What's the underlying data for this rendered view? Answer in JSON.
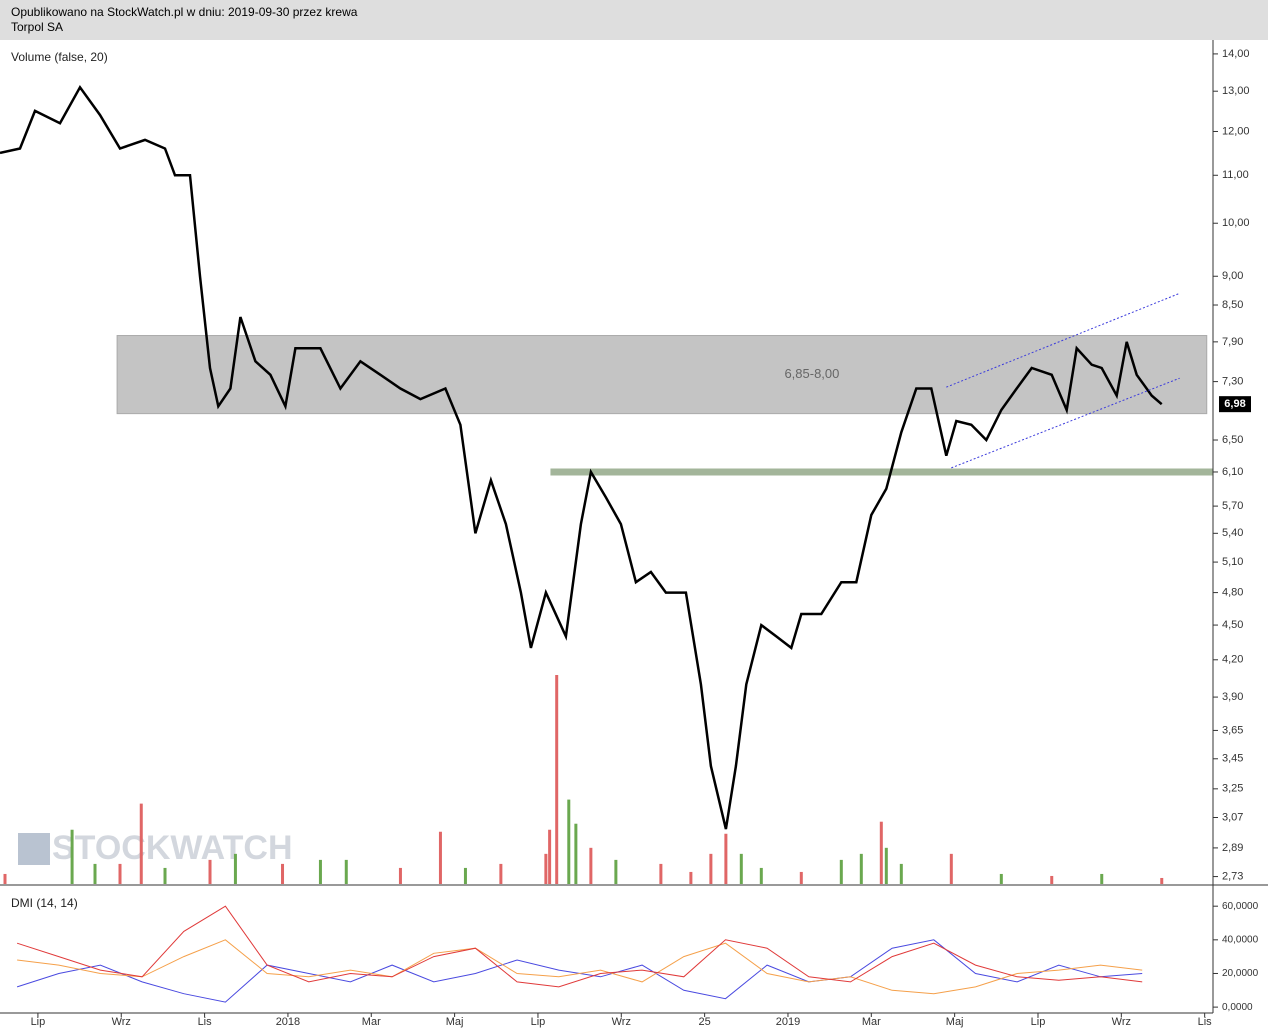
{
  "header": {
    "line1": "Opublikowano na StockWatch.pl w dniu: 2019-09-30 przez krewa",
    "line2": "Torpol SA"
  },
  "chart_data": [
    {
      "type": "line",
      "label": "Volume (false, 20)",
      "color": "#000000",
      "log_scale": true,
      "xlim": [
        -0.91,
        28.2
      ],
      "ylim": [
        2.69,
        14.25
      ],
      "xticks": [
        {
          "value": 0,
          "label": "Lip"
        },
        {
          "value": 2,
          "label": "Wrz"
        },
        {
          "value": 4,
          "label": "Lis"
        },
        {
          "value": 6,
          "label": "2018"
        },
        {
          "value": 8,
          "label": "Mar"
        },
        {
          "value": 10,
          "label": "Maj"
        },
        {
          "value": 12,
          "label": "Lip"
        },
        {
          "value": 14,
          "label": "Wrz"
        },
        {
          "value": 16,
          "label": "25"
        },
        {
          "value": 18,
          "label": "2019"
        },
        {
          "value": 20,
          "label": "Mar"
        },
        {
          "value": 22,
          "label": "Maj"
        },
        {
          "value": 24,
          "label": "Lip"
        },
        {
          "value": 26,
          "label": "Wrz"
        },
        {
          "value": 28,
          "label": "Lis"
        }
      ],
      "yticks": [
        {
          "value": 14,
          "label": "14,00"
        },
        {
          "value": 13,
          "label": "13,00"
        },
        {
          "value": 12,
          "label": "12,00"
        },
        {
          "value": 11,
          "label": "11,00"
        },
        {
          "value": 10,
          "label": "10,00"
        },
        {
          "value": 9,
          "label": "9,00"
        },
        {
          "value": 8.5,
          "label": "8,50"
        },
        {
          "value": 7.9,
          "label": "7,90"
        },
        {
          "value": 7.3,
          "label": "7,30"
        },
        {
          "value": 6.5,
          "label": "6,50"
        },
        {
          "value": 6.1,
          "label": "6,10"
        },
        {
          "value": 5.7,
          "label": "5,70"
        },
        {
          "value": 5.4,
          "label": "5,40"
        },
        {
          "value": 5.1,
          "label": "5,10"
        },
        {
          "value": 4.8,
          "label": "4,80"
        },
        {
          "value": 4.5,
          "label": "4,50"
        },
        {
          "value": 4.2,
          "label": "4,20"
        },
        {
          "value": 3.9,
          "label": "3,90"
        },
        {
          "value": 3.65,
          "label": "3,65"
        },
        {
          "value": 3.45,
          "label": "3,45"
        },
        {
          "value": 3.25,
          "label": "3,25"
        },
        {
          "value": 3.07,
          "label": "3,07"
        },
        {
          "value": 2.89,
          "label": "2,89"
        },
        {
          "value": 2.73,
          "label": "2,73"
        }
      ],
      "x": [
        -0.91,
        -0.43,
        -0.07,
        0.53,
        1.01,
        1.49,
        1.97,
        2.57,
        3.05,
        3.29,
        3.65,
        3.89,
        4.13,
        4.33,
        4.62,
        4.86,
        5.22,
        5.58,
        5.94,
        6.18,
        6.78,
        7.26,
        7.74,
        8.22,
        8.7,
        9.18,
        9.78,
        10.14,
        10.5,
        10.87,
        11.23,
        11.59,
        11.83,
        12.19,
        12.67,
        13.03,
        13.27,
        13.63,
        13.99,
        14.35,
        14.71,
        15.07,
        15.55,
        15.91,
        16.15,
        16.51,
        16.75,
        17.0,
        17.36,
        17.72,
        18.08,
        18.32,
        18.8,
        19.28,
        19.64,
        20.0,
        20.36,
        20.72,
        21.08,
        21.44,
        21.8,
        22.04,
        22.4,
        22.76,
        23.12,
        23.49,
        23.85,
        24.33,
        24.69,
        24.93,
        25.29,
        25.53,
        25.89,
        26.13,
        26.37,
        26.73,
        26.97
      ],
      "values": [
        11.5,
        11.6,
        12.5,
        12.2,
        13.1,
        12.4,
        11.6,
        11.8,
        11.6,
        11.0,
        11.0,
        9.0,
        7.5,
        6.95,
        7.2,
        8.3,
        7.6,
        7.4,
        6.95,
        7.8,
        7.8,
        7.2,
        7.6,
        7.4,
        7.2,
        7.05,
        7.2,
        6.7,
        5.4,
        6.0,
        5.5,
        4.8,
        4.3,
        4.8,
        4.4,
        5.5,
        6.1,
        5.8,
        5.5,
        4.9,
        5.0,
        4.8,
        4.8,
        4.0,
        3.4,
        3.0,
        3.4,
        4.0,
        4.5,
        4.4,
        4.3,
        4.6,
        4.6,
        4.9,
        4.9,
        5.6,
        5.9,
        6.6,
        7.2,
        7.2,
        6.3,
        6.75,
        6.7,
        6.5,
        6.9,
        7.2,
        7.5,
        7.4,
        6.9,
        7.8,
        7.55,
        7.5,
        7.1,
        7.9,
        7.4,
        7.1,
        6.98
      ],
      "zone": {
        "from": 6.85,
        "to": 8.0,
        "x": [
          1.9,
          28.05
        ],
        "label": "6,85-8,00",
        "color": "#c4c4c4"
      },
      "support": {
        "value": 6.1,
        "x": [
          12.3,
          28.2
        ],
        "color": "#a3b59a"
      },
      "channel": [
        {
          "x": [
            21.8,
            27.4
          ],
          "values": [
            7.22,
            8.7
          ]
        },
        {
          "x": [
            21.92,
            27.4
          ],
          "values": [
            6.15,
            7.35
          ]
        }
      ],
      "channel_color": "#3b3bdc",
      "last": {
        "value": 6.98,
        "label": "6,98"
      },
      "watermark": "STOCKWATCH"
    },
    {
      "type": "bar",
      "x": [
        -0.79,
        0.82,
        1.37,
        1.97,
        2.48,
        3.05,
        4.13,
        4.74,
        5.87,
        6.78,
        7.4,
        8.7,
        9.66,
        10.26,
        11.11,
        12.19,
        12.28,
        12.45,
        12.74,
        12.91,
        13.27,
        13.87,
        14.95,
        15.67,
        16.15,
        16.51,
        16.88,
        17.36,
        18.32,
        19.28,
        19.76,
        20.24,
        20.36,
        20.72,
        21.92,
        23.12,
        24.33,
        25.53,
        26.97
      ],
      "values": [
        5,
        27,
        10,
        10,
        40,
        8,
        12,
        15,
        10,
        12,
        12,
        8,
        26,
        8,
        10,
        15,
        27,
        104,
        42,
        30,
        18,
        12,
        10,
        6,
        15,
        25,
        15,
        8,
        6,
        12,
        15,
        31,
        18,
        10,
        15,
        5,
        4,
        5,
        3
      ],
      "colors": [
        "#e06666",
        "#6aa84f",
        "#6aa84f",
        "#e06666",
        "#e06666",
        "#6aa84f",
        "#e06666",
        "#6aa84f",
        "#e06666",
        "#6aa84f",
        "#6aa84f",
        "#e06666",
        "#e06666",
        "#6aa84f",
        "#e06666",
        "#e06666",
        "#e06666",
        "#e06666",
        "#6aa84f",
        "#6aa84f",
        "#e06666",
        "#6aa84f",
        "#e06666",
        "#e06666",
        "#e06666",
        "#e06666",
        "#6aa84f",
        "#6aa84f",
        "#e06666",
        "#6aa84f",
        "#6aa84f",
        "#e06666",
        "#6aa84f",
        "#6aa84f",
        "#e06666",
        "#6aa84f",
        "#e06666",
        "#6aa84f",
        "#e06666"
      ]
    },
    {
      "type": "line",
      "label": "DMI (14, 14)",
      "ylim": [
        -3.5,
        72
      ],
      "yticks": [
        {
          "value": 60,
          "label": "60,0000"
        },
        {
          "value": 40,
          "label": "40,0000"
        },
        {
          "value": 20,
          "label": "20,0000"
        },
        {
          "value": 0,
          "label": "0,0000"
        }
      ],
      "x": [
        -0.5,
        0.5,
        1.5,
        2.5,
        3.5,
        4.5,
        5.5,
        6.5,
        7.5,
        8.5,
        9.5,
        10.5,
        11.5,
        12.5,
        13.5,
        14.5,
        15.5,
        16.5,
        17.5,
        18.5,
        19.5,
        20.5,
        21.5,
        22.5,
        23.5,
        24.5,
        25.5,
        26.5
      ],
      "series": [
        {
          "color": "#4a4ae0",
          "values": [
            12,
            20,
            25,
            15,
            8,
            3,
            25,
            20,
            15,
            25,
            15,
            20,
            28,
            22,
            18,
            25,
            10,
            5,
            25,
            15,
            18,
            35,
            40,
            20,
            15,
            25,
            18,
            20
          ]
        },
        {
          "color": "#f5a04a",
          "values": [
            28,
            25,
            20,
            18,
            30,
            40,
            20,
            18,
            22,
            18,
            32,
            35,
            20,
            18,
            22,
            15,
            30,
            38,
            20,
            15,
            18,
            10,
            8,
            12,
            20,
            22,
            25,
            22
          ]
        },
        {
          "color": "#e03a3a",
          "values": [
            38,
            30,
            22,
            18,
            45,
            60,
            25,
            15,
            20,
            18,
            30,
            35,
            15,
            12,
            20,
            22,
            18,
            40,
            35,
            18,
            15,
            30,
            38,
            25,
            18,
            16,
            18,
            15
          ]
        }
      ]
    }
  ]
}
